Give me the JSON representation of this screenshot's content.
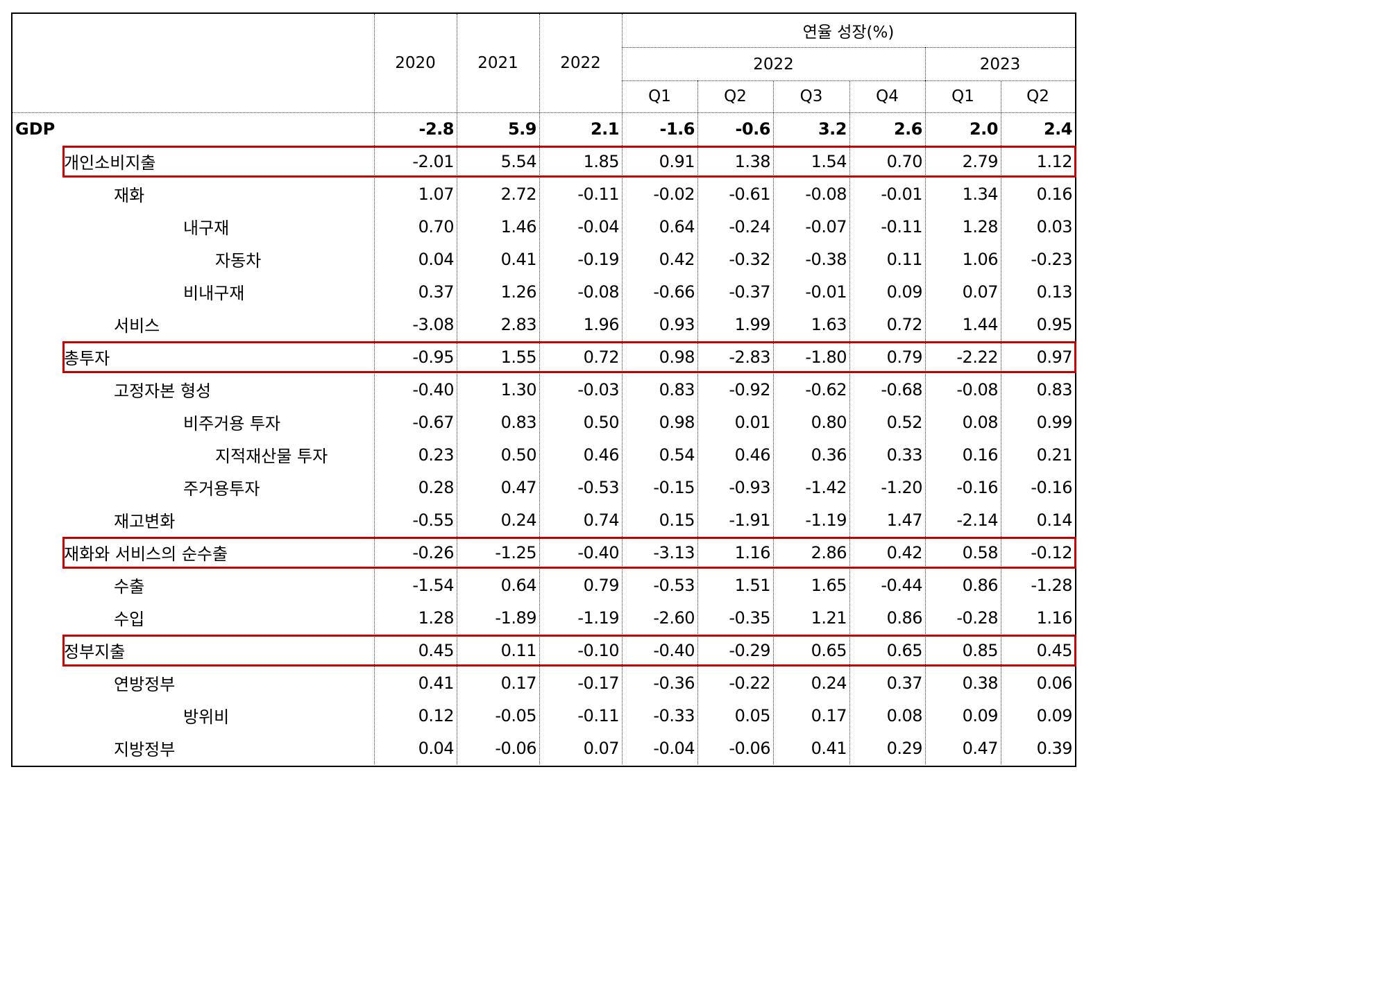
{
  "header": {
    "group_title": "연율 성장(%)",
    "annual_years": [
      "2020",
      "2021",
      "2022"
    ],
    "quarter_years": [
      "2022",
      "2023"
    ],
    "quarters": [
      "Q1",
      "Q2",
      "Q3",
      "Q4",
      "Q1",
      "Q2"
    ]
  },
  "rows": [
    {
      "label": "GDP",
      "level": 0,
      "bold": true,
      "highlight": false,
      "values": [
        "-2.8",
        "5.9",
        "2.1",
        "-1.6",
        "-0.6",
        "3.2",
        "2.6",
        "2.0",
        "2.4"
      ]
    },
    {
      "label": "개인소비지출",
      "level": 1,
      "bold": false,
      "highlight": true,
      "values": [
        "-2.01",
        "5.54",
        "1.85",
        "0.91",
        "1.38",
        "1.54",
        "0.70",
        "2.79",
        "1.12"
      ]
    },
    {
      "label": "재화",
      "level": 2,
      "bold": false,
      "highlight": false,
      "values": [
        "1.07",
        "2.72",
        "-0.11",
        "-0.02",
        "-0.61",
        "-0.08",
        "-0.01",
        "1.34",
        "0.16"
      ]
    },
    {
      "label": "내구재",
      "level": 3,
      "bold": false,
      "highlight": false,
      "values": [
        "0.70",
        "1.46",
        "-0.04",
        "0.64",
        "-0.24",
        "-0.07",
        "-0.11",
        "1.28",
        "0.03"
      ]
    },
    {
      "label": "자동차",
      "level": 4,
      "bold": false,
      "highlight": false,
      "values": [
        "0.04",
        "0.41",
        "-0.19",
        "0.42",
        "-0.32",
        "-0.38",
        "0.11",
        "1.06",
        "-0.23"
      ]
    },
    {
      "label": "비내구재",
      "level": 3,
      "bold": false,
      "highlight": false,
      "values": [
        "0.37",
        "1.26",
        "-0.08",
        "-0.66",
        "-0.37",
        "-0.01",
        "0.09",
        "0.07",
        "0.13"
      ]
    },
    {
      "label": "서비스",
      "level": 2,
      "bold": false,
      "highlight": false,
      "values": [
        "-3.08",
        "2.83",
        "1.96",
        "0.93",
        "1.99",
        "1.63",
        "0.72",
        "1.44",
        "0.95"
      ]
    },
    {
      "label": "총투자",
      "level": 1,
      "bold": false,
      "highlight": true,
      "values": [
        "-0.95",
        "1.55",
        "0.72",
        "0.98",
        "-2.83",
        "-1.80",
        "0.79",
        "-2.22",
        "0.97"
      ]
    },
    {
      "label": "고정자본 형성",
      "level": 2,
      "bold": false,
      "highlight": false,
      "values": [
        "-0.40",
        "1.30",
        "-0.03",
        "0.83",
        "-0.92",
        "-0.62",
        "-0.68",
        "-0.08",
        "0.83"
      ]
    },
    {
      "label": "비주거용 투자",
      "level": 3,
      "bold": false,
      "highlight": false,
      "values": [
        "-0.67",
        "0.83",
        "0.50",
        "0.98",
        "0.01",
        "0.80",
        "0.52",
        "0.08",
        "0.99"
      ]
    },
    {
      "label": "지적재산물 투자",
      "level": 4,
      "bold": false,
      "highlight": false,
      "values": [
        "0.23",
        "0.50",
        "0.46",
        "0.54",
        "0.46",
        "0.36",
        "0.33",
        "0.16",
        "0.21"
      ]
    },
    {
      "label": "주거용투자",
      "level": 3,
      "bold": false,
      "highlight": false,
      "values": [
        "0.28",
        "0.47",
        "-0.53",
        "-0.15",
        "-0.93",
        "-1.42",
        "-1.20",
        "-0.16",
        "-0.16"
      ]
    },
    {
      "label": "재고변화",
      "level": 2,
      "bold": false,
      "highlight": false,
      "values": [
        "-0.55",
        "0.24",
        "0.74",
        "0.15",
        "-1.91",
        "-1.19",
        "1.47",
        "-2.14",
        "0.14"
      ]
    },
    {
      "label": "재화와 서비스의 순수출",
      "level": 1,
      "bold": false,
      "highlight": true,
      "values": [
        "-0.26",
        "-1.25",
        "-0.40",
        "-3.13",
        "1.16",
        "2.86",
        "0.42",
        "0.58",
        "-0.12"
      ]
    },
    {
      "label": "수출",
      "level": 2,
      "bold": false,
      "highlight": false,
      "values": [
        "-1.54",
        "0.64",
        "0.79",
        "-0.53",
        "1.51",
        "1.65",
        "-0.44",
        "0.86",
        "-1.28"
      ]
    },
    {
      "label": "수입",
      "level": 2,
      "bold": false,
      "highlight": false,
      "values": [
        "1.28",
        "-1.89",
        "-1.19",
        "-2.60",
        "-0.35",
        "1.21",
        "0.86",
        "-0.28",
        "1.16"
      ]
    },
    {
      "label": "정부지출",
      "level": 1,
      "bold": false,
      "highlight": true,
      "values": [
        "0.45",
        "0.11",
        "-0.10",
        "-0.40",
        "-0.29",
        "0.65",
        "0.65",
        "0.85",
        "0.45"
      ]
    },
    {
      "label": "연방정부",
      "level": 2,
      "bold": false,
      "highlight": false,
      "values": [
        "0.41",
        "0.17",
        "-0.17",
        "-0.36",
        "-0.22",
        "0.24",
        "0.37",
        "0.38",
        "0.06"
      ]
    },
    {
      "label": "방위비",
      "level": 3,
      "bold": false,
      "highlight": false,
      "values": [
        "0.12",
        "-0.05",
        "-0.11",
        "-0.33",
        "0.05",
        "0.17",
        "0.08",
        "0.09",
        "0.09"
      ]
    },
    {
      "label": "지방정부",
      "level": 2,
      "bold": false,
      "highlight": false,
      "values": [
        "0.04",
        "-0.06",
        "0.07",
        "-0.04",
        "-0.06",
        "0.41",
        "0.29",
        "0.47",
        "0.39"
      ]
    }
  ],
  "colors": {
    "highlight_border": "#c00000",
    "text": "#000000",
    "grid": "#333333"
  }
}
